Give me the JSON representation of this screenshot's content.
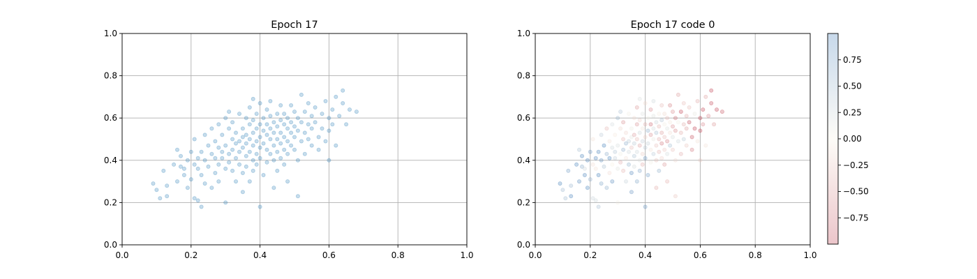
{
  "chart_data": [
    {
      "type": "scatter",
      "title": "Epoch 17",
      "xlim": [
        0.0,
        1.0
      ],
      "ylim": [
        0.0,
        1.0
      ],
      "xticks": [
        "0.0",
        "0.2",
        "0.4",
        "0.6",
        "0.8",
        "1.0"
      ],
      "yticks": [
        "0.0",
        "0.2",
        "0.4",
        "0.6",
        "0.8",
        "1.0"
      ],
      "grid": true,
      "marker_color": "#1f77b4",
      "marker_alpha": 0.25,
      "point_count": 180,
      "points": [
        [
          0.09,
          0.29
        ],
        [
          0.1,
          0.26
        ],
        [
          0.11,
          0.22
        ],
        [
          0.12,
          0.35
        ],
        [
          0.13,
          0.23
        ],
        [
          0.13,
          0.28
        ],
        [
          0.15,
          0.38
        ],
        [
          0.16,
          0.3
        ],
        [
          0.16,
          0.45
        ],
        [
          0.17,
          0.42
        ],
        [
          0.17,
          0.37
        ],
        [
          0.18,
          0.36
        ],
        [
          0.18,
          0.33
        ],
        [
          0.19,
          0.4
        ],
        [
          0.19,
          0.27
        ],
        [
          0.2,
          0.44
        ],
        [
          0.2,
          0.31
        ],
        [
          0.21,
          0.38
        ],
        [
          0.21,
          0.5
        ],
        [
          0.21,
          0.22
        ],
        [
          0.22,
          0.21
        ],
        [
          0.22,
          0.41
        ],
        [
          0.22,
          0.36
        ],
        [
          0.23,
          0.44
        ],
        [
          0.23,
          0.33
        ],
        [
          0.23,
          0.18
        ],
        [
          0.24,
          0.52
        ],
        [
          0.24,
          0.29
        ],
        [
          0.24,
          0.4
        ],
        [
          0.25,
          0.47
        ],
        [
          0.25,
          0.37
        ],
        [
          0.26,
          0.27
        ],
        [
          0.26,
          0.43
        ],
        [
          0.26,
          0.55
        ],
        [
          0.27,
          0.49
        ],
        [
          0.27,
          0.34
        ],
        [
          0.27,
          0.41
        ],
        [
          0.28,
          0.38
        ],
        [
          0.28,
          0.57
        ],
        [
          0.28,
          0.46
        ],
        [
          0.28,
          0.3
        ],
        [
          0.29,
          0.44
        ],
        [
          0.29,
          0.52
        ],
        [
          0.29,
          0.41
        ],
        [
          0.3,
          0.36
        ],
        [
          0.3,
          0.6
        ],
        [
          0.3,
          0.47
        ],
        [
          0.3,
          0.2
        ],
        [
          0.31,
          0.55
        ],
        [
          0.31,
          0.43
        ],
        [
          0.31,
          0.63
        ],
        [
          0.31,
          0.39
        ],
        [
          0.32,
          0.5
        ],
        [
          0.32,
          0.45
        ],
        [
          0.32,
          0.35
        ],
        [
          0.32,
          0.58
        ],
        [
          0.33,
          0.48
        ],
        [
          0.33,
          0.41
        ],
        [
          0.33,
          0.53
        ],
        [
          0.33,
          0.3
        ],
        [
          0.34,
          0.62
        ],
        [
          0.34,
          0.49
        ],
        [
          0.34,
          0.44
        ],
        [
          0.34,
          0.38
        ],
        [
          0.35,
          0.51
        ],
        [
          0.35,
          0.55
        ],
        [
          0.35,
          0.46
        ],
        [
          0.35,
          0.34
        ],
        [
          0.35,
          0.25
        ],
        [
          0.36,
          0.6
        ],
        [
          0.36,
          0.52
        ],
        [
          0.36,
          0.42
        ],
        [
          0.36,
          0.48
        ],
        [
          0.36,
          0.37
        ],
        [
          0.37,
          0.57
        ],
        [
          0.37,
          0.5
        ],
        [
          0.37,
          0.44
        ],
        [
          0.37,
          0.3
        ],
        [
          0.37,
          0.65
        ],
        [
          0.38,
          0.53
        ],
        [
          0.38,
          0.47
        ],
        [
          0.38,
          0.4
        ],
        [
          0.38,
          0.59
        ],
        [
          0.38,
          0.35
        ],
        [
          0.38,
          0.69
        ],
        [
          0.39,
          0.55
        ],
        [
          0.39,
          0.49
        ],
        [
          0.39,
          0.43
        ],
        [
          0.39,
          0.62
        ],
        [
          0.39,
          0.38
        ],
        [
          0.4,
          0.51
        ],
        [
          0.4,
          0.46
        ],
        [
          0.4,
          0.57
        ],
        [
          0.4,
          0.67
        ],
        [
          0.4,
          0.41
        ],
        [
          0.4,
          0.18
        ],
        [
          0.41,
          0.54
        ],
        [
          0.41,
          0.48
        ],
        [
          0.41,
          0.6
        ],
        [
          0.41,
          0.33
        ],
        [
          0.42,
          0.52
        ],
        [
          0.42,
          0.57
        ],
        [
          0.42,
          0.45
        ],
        [
          0.42,
          0.64
        ],
        [
          0.42,
          0.39
        ],
        [
          0.43,
          0.5
        ],
        [
          0.43,
          0.55
        ],
        [
          0.43,
          0.61
        ],
        [
          0.43,
          0.43
        ],
        [
          0.43,
          0.68
        ],
        [
          0.44,
          0.53
        ],
        [
          0.44,
          0.58
        ],
        [
          0.44,
          0.47
        ],
        [
          0.44,
          0.4
        ],
        [
          0.44,
          0.27
        ],
        [
          0.45,
          0.56
        ],
        [
          0.45,
          0.5
        ],
        [
          0.45,
          0.62
        ],
        [
          0.45,
          0.44
        ],
        [
          0.45,
          0.35
        ],
        [
          0.46,
          0.59
        ],
        [
          0.46,
          0.53
        ],
        [
          0.46,
          0.48
        ],
        [
          0.46,
          0.66
        ],
        [
          0.46,
          0.41
        ],
        [
          0.47,
          0.57
        ],
        [
          0.47,
          0.51
        ],
        [
          0.47,
          0.45
        ],
        [
          0.47,
          0.62
        ],
        [
          0.47,
          0.38
        ],
        [
          0.48,
          0.55
        ],
        [
          0.48,
          0.49
        ],
        [
          0.48,
          0.6
        ],
        [
          0.48,
          0.43
        ],
        [
          0.48,
          0.3
        ],
        [
          0.49,
          0.53
        ],
        [
          0.49,
          0.58
        ],
        [
          0.49,
          0.47
        ],
        [
          0.49,
          0.66
        ],
        [
          0.5,
          0.51
        ],
        [
          0.5,
          0.56
        ],
        [
          0.5,
          0.45
        ],
        [
          0.5,
          0.63
        ],
        [
          0.51,
          0.54
        ],
        [
          0.51,
          0.6
        ],
        [
          0.51,
          0.4
        ],
        [
          0.51,
          0.23
        ],
        [
          0.52,
          0.58
        ],
        [
          0.52,
          0.49
        ],
        [
          0.52,
          0.71
        ],
        [
          0.53,
          0.53
        ],
        [
          0.53,
          0.63
        ],
        [
          0.53,
          0.43
        ],
        [
          0.54,
          0.57
        ],
        [
          0.54,
          0.5
        ],
        [
          0.54,
          0.67
        ],
        [
          0.55,
          0.61
        ],
        [
          0.55,
          0.47
        ],
        [
          0.55,
          0.55
        ],
        [
          0.56,
          0.58
        ],
        [
          0.56,
          0.65
        ],
        [
          0.57,
          0.51
        ],
        [
          0.57,
          0.45
        ],
        [
          0.58,
          0.62
        ],
        [
          0.58,
          0.55
        ],
        [
          0.59,
          0.68
        ],
        [
          0.59,
          0.49
        ],
        [
          0.6,
          0.6
        ],
        [
          0.6,
          0.54
        ],
        [
          0.6,
          0.4
        ],
        [
          0.61,
          0.64
        ],
        [
          0.61,
          0.57
        ],
        [
          0.62,
          0.7
        ],
        [
          0.62,
          0.47
        ],
        [
          0.63,
          0.61
        ],
        [
          0.64,
          0.73
        ],
        [
          0.64,
          0.67
        ],
        [
          0.65,
          0.57
        ],
        [
          0.66,
          0.64
        ],
        [
          0.68,
          0.63
        ]
      ]
    },
    {
      "type": "scatter",
      "title": "Epoch 17 code 0",
      "xlim": [
        0.0,
        1.0
      ],
      "ylim": [
        0.0,
        1.0
      ],
      "xticks": [
        "0.0",
        "0.2",
        "0.4",
        "0.6",
        "0.8",
        "1.0"
      ],
      "yticks": [
        "0.0",
        "0.2",
        "0.4",
        "0.6",
        "0.8",
        "1.0"
      ],
      "grid": true,
      "colormap": "RdBu",
      "marker_alpha": 0.25,
      "same_points_as": "Epoch 17",
      "colorbar": {
        "range": [
          -1.0,
          1.0
        ],
        "ticks": [
          "0.75",
          "0.50",
          "0.25",
          "0.00",
          "−0.25",
          "−0.50",
          "−0.75"
        ],
        "tick_values": [
          0.75,
          0.5,
          0.25,
          0.0,
          -0.25,
          -0.5,
          -0.75
        ],
        "color_low": "#b2182b",
        "color_mid": "#f7f0e0",
        "color_high": "#2166ac",
        "alpha": 0.25
      }
    }
  ]
}
